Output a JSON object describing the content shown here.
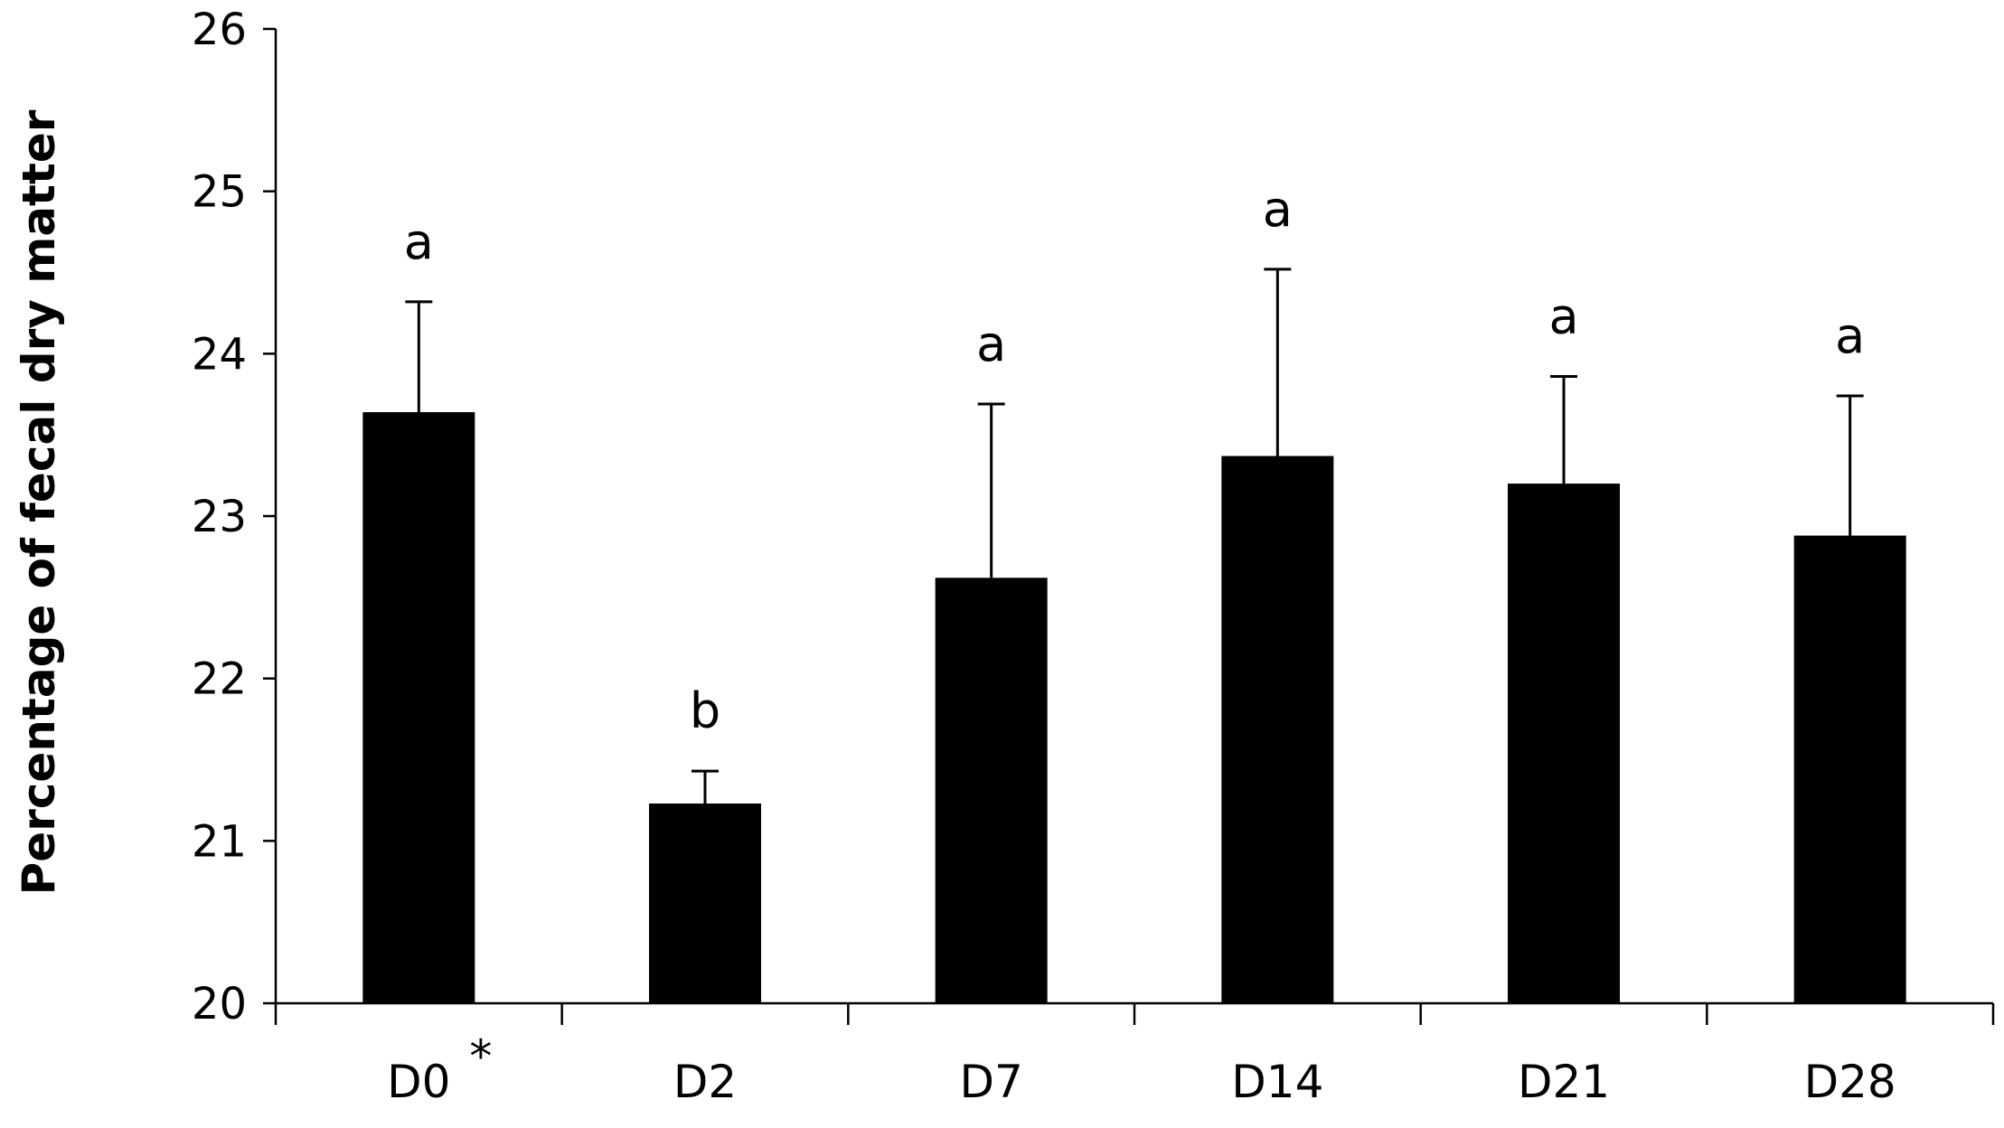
{
  "chart_data": {
    "type": "bar",
    "title": "",
    "xlabel": "",
    "ylabel": "Percentage of fecal dry matter",
    "ylim": [
      20,
      26
    ],
    "yticks": [
      20,
      21,
      22,
      23,
      24,
      25,
      26
    ],
    "grid": false,
    "legend": "none",
    "categories": [
      "D0",
      "D2",
      "D7",
      "D14",
      "D21",
      "D28"
    ],
    "category_marks": [
      "*",
      "",
      "",
      "",
      "",
      ""
    ],
    "values": [
      23.64,
      21.23,
      22.62,
      23.37,
      23.2,
      22.88
    ],
    "error_upper": [
      24.32,
      21.43,
      23.69,
      24.52,
      23.86,
      23.74
    ],
    "significance": [
      "a",
      "b",
      "a",
      "a",
      "a",
      "a"
    ],
    "bar_color": "#000000",
    "axis_color": "#000000"
  }
}
